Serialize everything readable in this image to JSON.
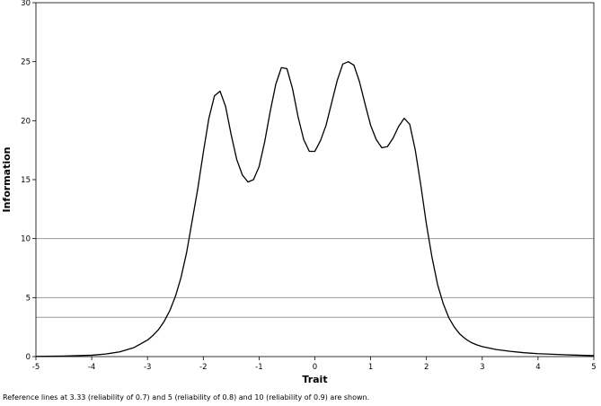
{
  "footnote": "Reference lines at 3.33 (reliability of 0.7) and 5 (reliability of 0.8) and 10 (reliability of 0.9) are shown.",
  "chart_data": {
    "type": "line",
    "title": "",
    "xlabel": "Trait",
    "ylabel": "Information",
    "xlim": [
      -5,
      5
    ],
    "ylim": [
      0,
      30
    ],
    "xticks": [
      -5,
      -4,
      -3,
      -2,
      -1,
      0,
      1,
      2,
      3,
      4,
      5
    ],
    "yticks": [
      0,
      5,
      10,
      15,
      20,
      25,
      30
    ],
    "grid": false,
    "reference_lines": [
      3.33,
      5,
      10
    ],
    "series": [
      {
        "x": [
          -5,
          -4.5,
          -4,
          -3.75,
          -3.5,
          -3.25,
          -3,
          -2.9,
          -2.8,
          -2.7,
          -2.6,
          -2.5,
          -2.4,
          -2.3,
          -2.2,
          -2.1,
          -2,
          -1.9,
          -1.8,
          -1.7,
          -1.6,
          -1.5,
          -1.4,
          -1.3,
          -1.2,
          -1.1,
          -1,
          -0.9,
          -0.8,
          -0.7,
          -0.6,
          -0.5,
          -0.4,
          -0.3,
          -0.2,
          -0.1,
          0,
          0.1,
          0.2,
          0.3,
          0.4,
          0.5,
          0.6,
          0.7,
          0.8,
          0.9,
          1,
          1.1,
          1.2,
          1.3,
          1.4,
          1.5,
          1.6,
          1.7,
          1.8,
          1.9,
          2,
          2.1,
          2.2,
          2.3,
          2.4,
          2.5,
          2.6,
          2.7,
          2.8,
          2.9,
          3,
          3.25,
          3.5,
          3.75,
          4,
          4.5,
          5
        ],
        "y": [
          0.02,
          0.05,
          0.12,
          0.22,
          0.4,
          0.75,
          1.4,
          1.8,
          2.3,
          3.0,
          3.9,
          5.1,
          6.7,
          8.8,
          11.5,
          14.2,
          17.3,
          20.2,
          22.1,
          22.5,
          21.2,
          18.8,
          16.7,
          15.4,
          14.8,
          15.0,
          16.1,
          18.2,
          20.8,
          23.1,
          24.5,
          24.4,
          22.7,
          20.3,
          18.4,
          17.4,
          17.4,
          18.3,
          19.6,
          21.5,
          23.4,
          24.8,
          25.0,
          24.7,
          23.3,
          21.4,
          19.6,
          18.4,
          17.7,
          17.8,
          18.5,
          19.5,
          20.2,
          19.7,
          17.5,
          14.5,
          11.2,
          8.4,
          6.1,
          4.5,
          3.3,
          2.5,
          1.9,
          1.5,
          1.2,
          1.0,
          0.85,
          0.6,
          0.45,
          0.33,
          0.25,
          0.15,
          0.08
        ]
      }
    ]
  }
}
